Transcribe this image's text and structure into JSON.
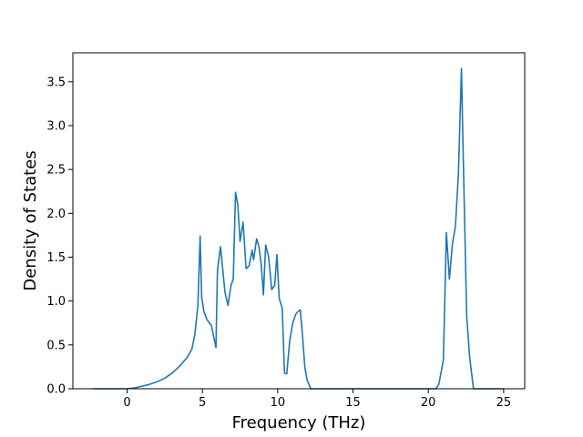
{
  "chart_data": {
    "type": "line",
    "title": "",
    "xlabel": "Frequency (THz)",
    "ylabel": "Density of States",
    "xlim": [
      -3.6,
      26.4
    ],
    "ylim": [
      0.0,
      3.83
    ],
    "xticks": [
      0,
      5,
      10,
      15,
      20,
      25
    ],
    "xtick_labels": [
      "0",
      "5",
      "10",
      "15",
      "20",
      "25"
    ],
    "yticks": [
      0.0,
      0.5,
      1.0,
      1.5,
      2.0,
      2.5,
      3.0,
      3.5
    ],
    "ytick_labels": [
      "0.0",
      "0.5",
      "1.0",
      "1.5",
      "2.0",
      "2.5",
      "3.0",
      "3.5"
    ],
    "grid": false,
    "legend": "none",
    "series": [
      {
        "color": "#1f77b4",
        "x": [
          -2.3,
          -1.0,
          0.0,
          0.5,
          1.0,
          1.5,
          2.0,
          2.5,
          3.0,
          3.5,
          4.0,
          4.3,
          4.5,
          4.7,
          4.85,
          4.95,
          5.1,
          5.3,
          5.6,
          5.8,
          5.9,
          6.0,
          6.2,
          6.5,
          6.7,
          6.9,
          7.05,
          7.2,
          7.35,
          7.5,
          7.7,
          7.9,
          8.1,
          8.3,
          8.4,
          8.6,
          8.75,
          8.9,
          9.05,
          9.2,
          9.4,
          9.6,
          9.8,
          9.95,
          10.1,
          10.3,
          10.45,
          10.6,
          10.8,
          11.0,
          11.2,
          11.35,
          11.5,
          11.65,
          11.8,
          11.95,
          12.2,
          15.0,
          18.0,
          20.5,
          20.7,
          21.0,
          21.2,
          21.4,
          21.6,
          21.8,
          22.0,
          22.2,
          22.35,
          22.55,
          22.75,
          23.0,
          25.0
        ],
        "y": [
          0.0,
          0.0,
          0.0,
          0.01,
          0.03,
          0.05,
          0.08,
          0.12,
          0.18,
          0.26,
          0.36,
          0.45,
          0.62,
          0.95,
          1.74,
          1.05,
          0.88,
          0.79,
          0.72,
          0.55,
          0.47,
          1.35,
          1.62,
          1.1,
          0.95,
          1.18,
          1.25,
          2.24,
          2.1,
          1.68,
          1.9,
          1.37,
          1.4,
          1.58,
          1.47,
          1.71,
          1.62,
          1.43,
          1.07,
          1.64,
          1.5,
          1.13,
          1.18,
          1.53,
          1.03,
          0.92,
          0.18,
          0.17,
          0.55,
          0.75,
          0.85,
          0.88,
          0.9,
          0.6,
          0.25,
          0.1,
          0.0,
          0.0,
          0.0,
          0.0,
          0.05,
          0.33,
          1.78,
          1.25,
          1.65,
          1.85,
          2.45,
          3.65,
          2.4,
          0.82,
          0.35,
          0.0,
          0.0
        ]
      }
    ]
  }
}
